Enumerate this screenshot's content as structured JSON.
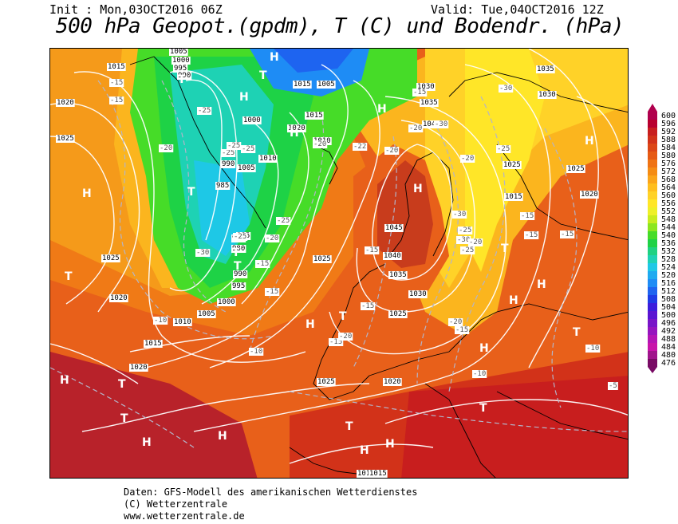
{
  "header": {
    "init": "Init : Mon,03OCT2016 06Z",
    "valid": "Valid: Tue,04OCT2016 12Z",
    "title": "500 hPa Geopot.(gpdm), T (C) und Bodendr. (hPa)"
  },
  "footer": {
    "line1": "Daten: GFS-Modell des amerikanischen Wetterdienstes",
    "line2": "(C) Wetterzentrale",
    "line3": "www.wetterzentrale.de"
  },
  "legend": {
    "levels": [
      "600",
      "596",
      "592",
      "588",
      "584",
      "580",
      "576",
      "572",
      "568",
      "564",
      "560",
      "556",
      "552",
      "548",
      "544",
      "540",
      "536",
      "532",
      "528",
      "524",
      "520",
      "516",
      "512",
      "508",
      "504",
      "500",
      "496",
      "492",
      "488",
      "484",
      "480",
      "476"
    ],
    "colors": [
      "#b0004d",
      "#b8002e",
      "#c81e1e",
      "#d23219",
      "#dc4616",
      "#e65a14",
      "#ef7314",
      "#f58c14",
      "#fba51a",
      "#ffbe1e",
      "#ffd228",
      "#ffe628",
      "#eef028",
      "#c8ec1e",
      "#8ce61e",
      "#46dc28",
      "#1ed246",
      "#1ed282",
      "#1ed2b4",
      "#1ec8e6",
      "#1eaaf0",
      "#1e8cf5",
      "#1e64f0",
      "#1e3ce6",
      "#3c1edc",
      "#5a14d2",
      "#7814c8",
      "#9614be",
      "#b414b4",
      "#c814aa",
      "#a0148c",
      "#780a64"
    ]
  },
  "map_labels": {
    "isobars": [
      {
        "text": "1015"
      },
      {
        "text": "1020"
      },
      {
        "text": "1025"
      },
      {
        "text": "1025"
      },
      {
        "text": "1020"
      },
      {
        "text": "1015"
      },
      {
        "text": "1020"
      },
      {
        "text": "1010"
      },
      {
        "text": "1005"
      },
      {
        "text": "1000"
      },
      {
        "text": "995"
      },
      {
        "text": "990"
      },
      {
        "text": "985"
      },
      {
        "text": "980"
      },
      {
        "text": "985"
      },
      {
        "text": "990"
      },
      {
        "text": "1005"
      },
      {
        "text": "1010"
      },
      {
        "text": "1000"
      },
      {
        "text": "1020"
      },
      {
        "text": "1015"
      },
      {
        "text": "1010"
      },
      {
        "text": "1005"
      },
      {
        "text": "1015"
      },
      {
        "text": "1005"
      },
      {
        "text": "1000"
      },
      {
        "text": "995"
      },
      {
        "text": "990"
      },
      {
        "text": "1030"
      },
      {
        "text": "1035"
      },
      {
        "text": "1040"
      },
      {
        "text": "1035"
      },
      {
        "text": "1030"
      },
      {
        "text": "1045"
      },
      {
        "text": "1040"
      },
      {
        "text": "1035"
      },
      {
        "text": "1030"
      },
      {
        "text": "1025"
      },
      {
        "text": "1025"
      },
      {
        "text": "1025"
      },
      {
        "text": "1020"
      },
      {
        "text": "1015"
      },
      {
        "text": "1025"
      },
      {
        "text": "1020"
      },
      {
        "text": "1015"
      },
      {
        "text": "985"
      },
      {
        "text": "980"
      },
      {
        "text": "1025"
      },
      {
        "text": "1015"
      }
    ],
    "temps": [
      {
        "text": "-15"
      },
      {
        "text": "-15"
      },
      {
        "text": "-20"
      },
      {
        "text": "-25"
      },
      {
        "text": "-25"
      },
      {
        "text": "-25"
      },
      {
        "text": "-25"
      },
      {
        "text": "-30"
      },
      {
        "text": "-25"
      },
      {
        "text": "-20"
      },
      {
        "text": "-15"
      },
      {
        "text": "-25"
      },
      {
        "text": "-20"
      },
      {
        "text": "-15"
      },
      {
        "text": "-10"
      },
      {
        "text": "-10"
      },
      {
        "text": "-15"
      },
      {
        "text": "-20"
      },
      {
        "text": "-15"
      },
      {
        "text": "-15"
      },
      {
        "text": "-22"
      },
      {
        "text": "-20"
      },
      {
        "text": "-20"
      },
      {
        "text": "-30"
      },
      {
        "text": "-30"
      },
      {
        "text": "-25"
      },
      {
        "text": "-30"
      },
      {
        "text": "-25"
      },
      {
        "text": "-20"
      },
      {
        "text": "-15"
      },
      {
        "text": "-15"
      },
      {
        "text": "-15"
      },
      {
        "text": "-20"
      },
      {
        "text": "-15"
      },
      {
        "text": "-10"
      },
      {
        "text": "-10"
      },
      {
        "text": "-5"
      },
      {
        "text": "-15"
      },
      {
        "text": "-20"
      },
      {
        "text": "-30"
      },
      {
        "text": "-25"
      }
    ],
    "highs_lows": [
      {
        "text": "H"
      },
      {
        "text": "T"
      },
      {
        "text": "T"
      },
      {
        "text": "H"
      },
      {
        "text": "H"
      },
      {
        "text": "H"
      },
      {
        "text": "T"
      },
      {
        "text": "T"
      },
      {
        "text": "T"
      },
      {
        "text": "H"
      },
      {
        "text": "H"
      },
      {
        "text": "T"
      },
      {
        "text": "H"
      },
      {
        "text": "T"
      },
      {
        "text": "H"
      },
      {
        "text": "H"
      },
      {
        "text": "T"
      },
      {
        "text": "H"
      },
      {
        "text": "T"
      },
      {
        "text": "H"
      },
      {
        "text": "T"
      },
      {
        "text": "H"
      },
      {
        "text": "H"
      },
      {
        "text": "T"
      },
      {
        "text": "H"
      },
      {
        "text": "T"
      },
      {
        "text": "H"
      },
      {
        "text": "T"
      },
      {
        "text": "H"
      }
    ]
  }
}
